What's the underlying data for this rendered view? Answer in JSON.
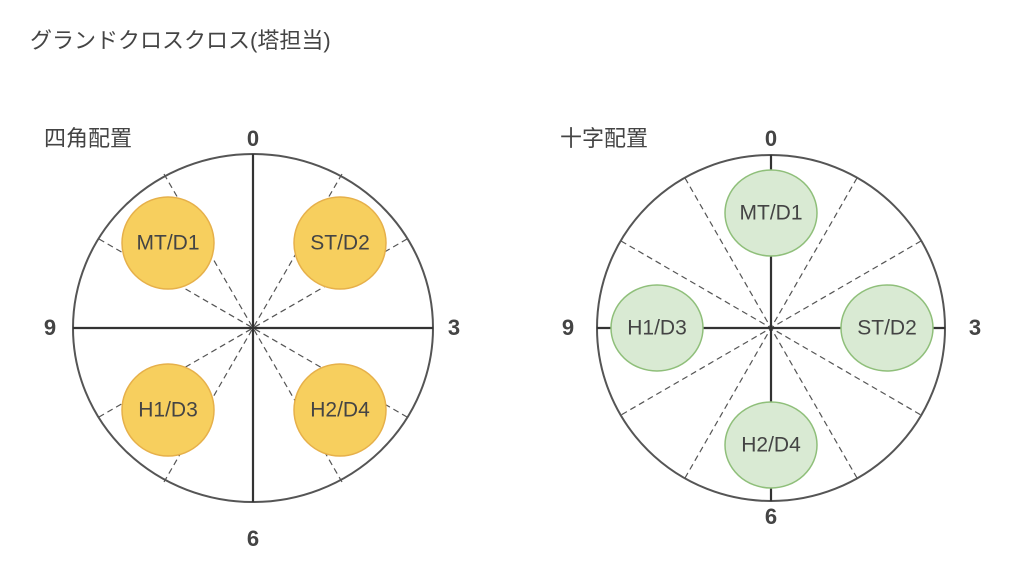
{
  "title": "グランドクロスクロス(塔担当)",
  "diagrams": [
    {
      "label": "四角配置",
      "clock": {
        "top": "0",
        "right": "3",
        "bottom": "6",
        "left": "9"
      },
      "nodes": [
        {
          "label": "MT/D1"
        },
        {
          "label": "ST/D2"
        },
        {
          "label": "H1/D3"
        },
        {
          "label": "H2/D4"
        }
      ]
    },
    {
      "label": "十字配置",
      "clock": {
        "top": "0",
        "right": "3",
        "bottom": "6",
        "left": "9"
      },
      "nodes": [
        {
          "label": "MT/D1"
        },
        {
          "label": "H1/D3"
        },
        {
          "label": "ST/D2"
        },
        {
          "label": "H2/D4"
        }
      ]
    }
  ]
}
